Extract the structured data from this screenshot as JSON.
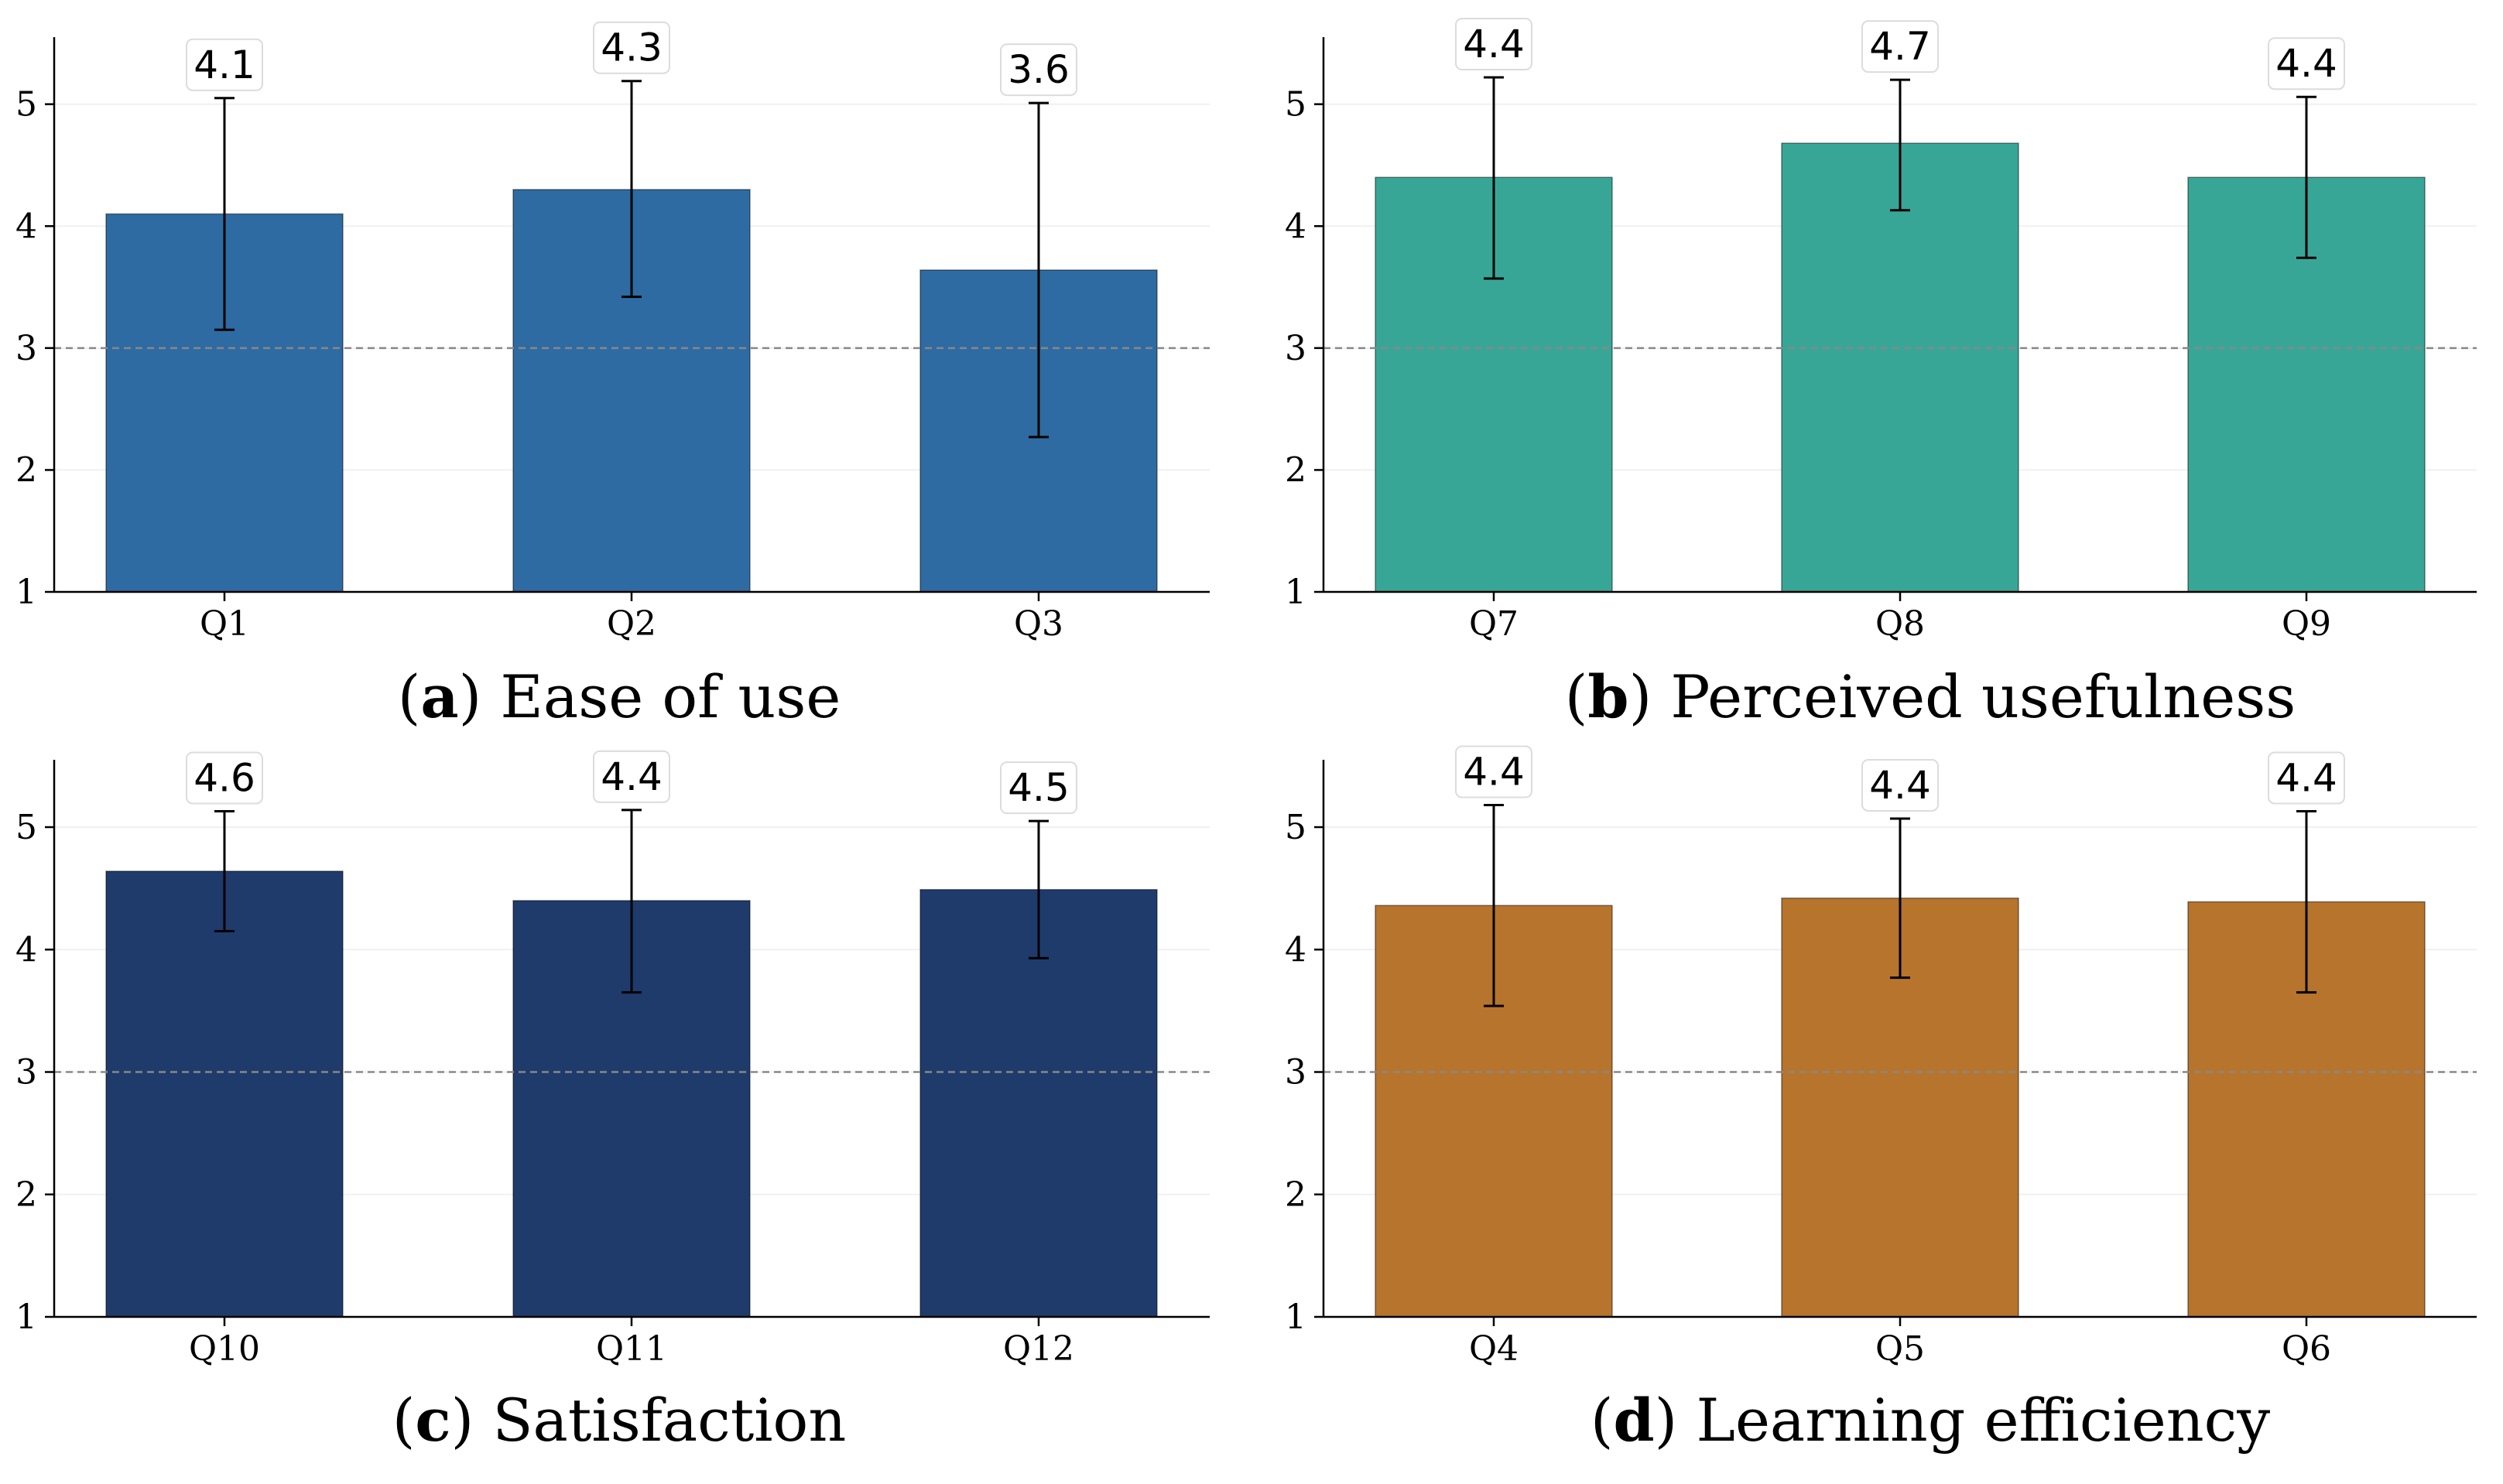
{
  "chart_data": [
    {
      "type": "bar",
      "panel_letter": "a",
      "title": "Ease of use",
      "categories": [
        "Q1",
        "Q2",
        "Q3"
      ],
      "values": [
        4.1,
        4.3,
        3.64
      ],
      "labels": [
        "4.1",
        "4.3",
        "3.6"
      ],
      "error_low": [
        3.15,
        3.42,
        2.27
      ],
      "error_high": [
        5.05,
        5.19,
        5.01
      ],
      "color": "#2E6BA2",
      "ylim": [
        1,
        5.55
      ],
      "yticks": [
        1,
        2,
        3,
        4,
        5
      ],
      "reference_line": 3,
      "xlabel": "",
      "ylabel": ""
    },
    {
      "type": "bar",
      "panel_letter": "b",
      "title": "Perceived usefulness",
      "categories": [
        "Q7",
        "Q8",
        "Q9"
      ],
      "values": [
        4.4,
        4.68,
        4.4
      ],
      "labels": [
        "4.4",
        "4.7",
        "4.4"
      ],
      "error_low": [
        3.57,
        4.13,
        3.74
      ],
      "error_high": [
        5.22,
        5.2,
        5.06
      ],
      "color": "#38A696",
      "ylim": [
        1,
        5.55
      ],
      "yticks": [
        1,
        2,
        3,
        4,
        5
      ],
      "reference_line": 3,
      "xlabel": "",
      "ylabel": ""
    },
    {
      "type": "bar",
      "panel_letter": "c",
      "title": "Satisfaction",
      "categories": [
        "Q10",
        "Q11",
        "Q12"
      ],
      "values": [
        4.64,
        4.4,
        4.49
      ],
      "labels": [
        "4.6",
        "4.4",
        "4.5"
      ],
      "error_low": [
        4.15,
        3.65,
        3.93
      ],
      "error_high": [
        5.13,
        5.14,
        5.05
      ],
      "color": "#1F3B6B",
      "ylim": [
        1,
        5.55
      ],
      "yticks": [
        1,
        2,
        3,
        4,
        5
      ],
      "reference_line": 3,
      "xlabel": "",
      "ylabel": ""
    },
    {
      "type": "bar",
      "panel_letter": "d",
      "title": "Learning efficiency",
      "categories": [
        "Q4",
        "Q5",
        "Q6"
      ],
      "values": [
        4.36,
        4.42,
        4.39
      ],
      "labels": [
        "4.4",
        "4.4",
        "4.4"
      ],
      "error_low": [
        3.54,
        3.77,
        3.65
      ],
      "error_high": [
        5.18,
        5.07,
        5.13
      ],
      "color": "#B7742C",
      "ylim": [
        1,
        5.55
      ],
      "yticks": [
        1,
        2,
        3,
        4,
        5
      ],
      "reference_line": 3,
      "xlabel": "",
      "ylabel": ""
    }
  ]
}
